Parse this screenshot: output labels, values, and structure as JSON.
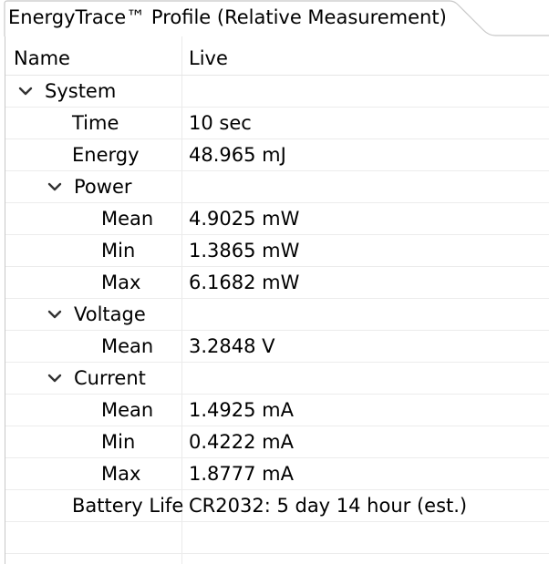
{
  "tab": {
    "title": "EnergyTrace™ Profile (Relative Measurement)"
  },
  "columns": {
    "name": "Name",
    "live": "Live"
  },
  "rows": {
    "system": {
      "name": "System",
      "expanded": true
    },
    "time": {
      "name": "Time",
      "value": "10 sec"
    },
    "energy": {
      "name": "Energy",
      "value": "48.965 mJ"
    },
    "power": {
      "name": "Power",
      "expanded": true
    },
    "power_mean": {
      "name": "Mean",
      "value": "4.9025 mW"
    },
    "power_min": {
      "name": "Min",
      "value": "1.3865 mW"
    },
    "power_max": {
      "name": "Max",
      "value": "6.1682 mW"
    },
    "voltage": {
      "name": "Voltage",
      "expanded": true
    },
    "voltage_mean": {
      "name": "Mean",
      "value": "3.2848 V"
    },
    "current": {
      "name": "Current",
      "expanded": true
    },
    "current_mean": {
      "name": "Mean",
      "value": "1.4925 mA"
    },
    "current_min": {
      "name": "Min",
      "value": "0.4222 mA"
    },
    "current_max": {
      "name": "Max",
      "value": "1.8777 mA"
    },
    "battery": {
      "name": "Battery Life",
      "value": "CR2032: 5 day 14 hour  (est.)"
    }
  },
  "icons": {
    "expand": "chevron-down-icon"
  },
  "colors": {
    "text": "#000000",
    "grid_line": "#ececec",
    "border": "#c8c8c8"
  }
}
